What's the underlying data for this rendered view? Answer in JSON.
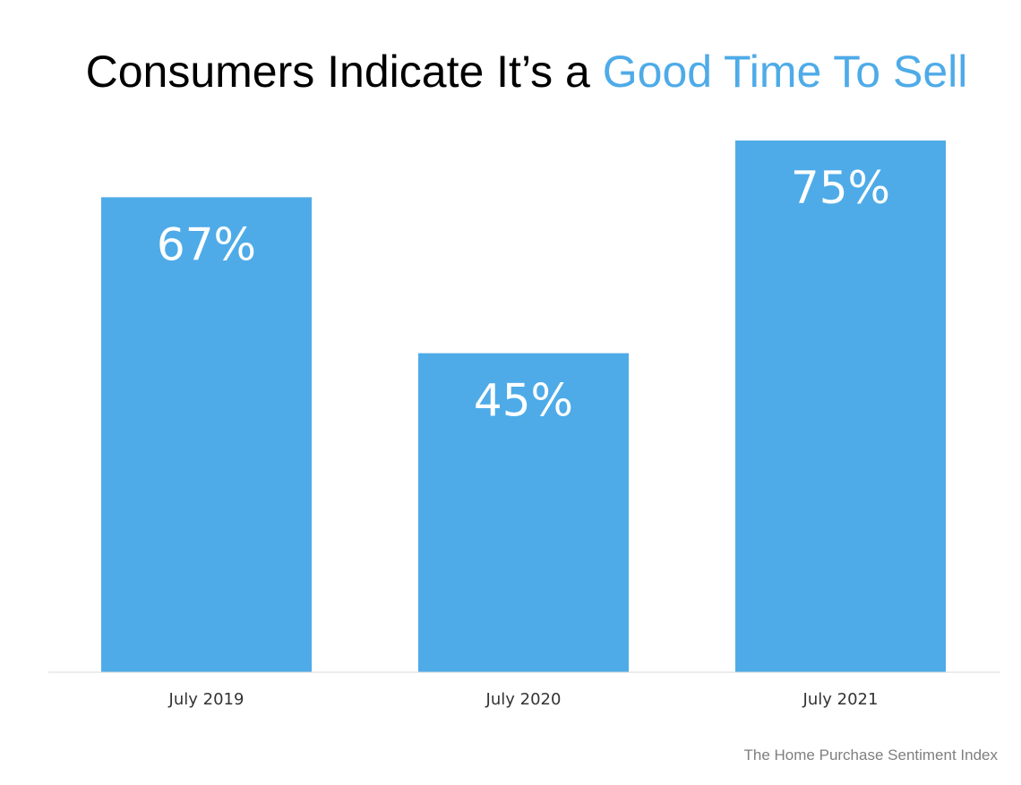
{
  "chart_data": {
    "type": "bar",
    "title": "Consumers Indicate It’s a Good Time To Sell",
    "title_parts": {
      "main": "Consumers Indicate It’s a ",
      "highlight": "Good Time To Sell"
    },
    "categories": [
      "July 2019",
      "July 2020",
      "July 2021"
    ],
    "values": [
      67,
      45,
      75
    ],
    "value_labels": [
      "67%",
      "45%",
      "75%"
    ],
    "ylim": [
      0,
      85
    ],
    "grid": false,
    "legend": "none",
    "source": "The Home Purchase Sentiment Index"
  },
  "colors": {
    "bar": "#4eabe8",
    "title_highlight": "#4eabe8",
    "title": "#000000",
    "source": "#7f7f7f"
  }
}
